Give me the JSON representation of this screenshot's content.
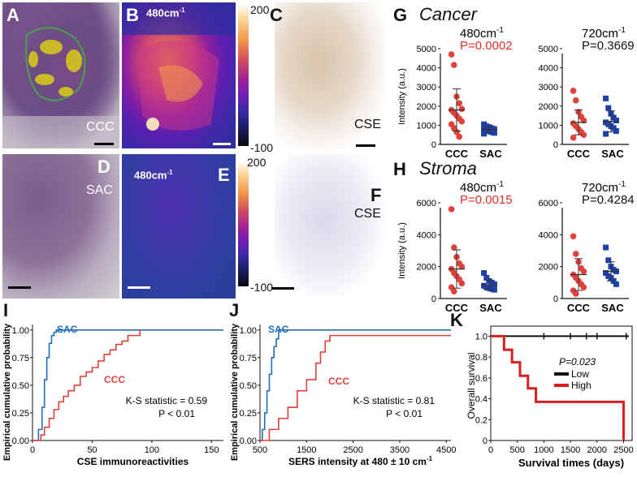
{
  "panels": {
    "A": {
      "letter": "A",
      "label": "CCC"
    },
    "B": {
      "letter": "B",
      "label": "480cm",
      "sup": "-1",
      "cb_max": "200",
      "cb_min": "-100"
    },
    "C": {
      "letter": "C",
      "label": "CSE"
    },
    "D": {
      "letter": "D",
      "label": "SAC"
    },
    "E": {
      "letter": "E",
      "label": "480cm",
      "sup": "-1",
      "cb_max": "200",
      "cb_min": "-100"
    },
    "F": {
      "letter": "F",
      "label": "CSE"
    }
  },
  "G": {
    "letter": "G",
    "title": "Cancer"
  },
  "H": {
    "letter": "H",
    "title": "Stroma"
  },
  "I": {
    "letter": "I"
  },
  "J": {
    "letter": "J"
  },
  "K": {
    "letter": "K"
  },
  "colors": {
    "ccc": "#e0413a",
    "sac": "#1f3fa8",
    "sac_line": "#1f6fb8",
    "high": "#d91e1e",
    "low": "#111111"
  },
  "chart_data": [
    {
      "id": "G1",
      "type": "scatter",
      "title": "480cm-1",
      "pvalue": "P=0.0002",
      "pvalue_color": "red",
      "ylabel": "Intensity (a.u.)",
      "ylim": [
        0,
        5000
      ],
      "yticks": [
        "0",
        "1000",
        "2000",
        "3000",
        "4000",
        "5000"
      ],
      "categories": [
        "CCC",
        "SAC"
      ],
      "series": [
        {
          "name": "CCC",
          "values": [
            4700,
            4150,
            2500,
            2150,
            1850,
            1800,
            1650,
            1500,
            1350,
            1200,
            1050,
            850,
            650,
            400
          ],
          "mean": 1800,
          "sd": 1100
        },
        {
          "name": "SAC",
          "values": [
            1050,
            950,
            900,
            850,
            800,
            760,
            720,
            680,
            640,
            600,
            560
          ],
          "mean": 780,
          "sd": 150
        }
      ]
    },
    {
      "id": "G2",
      "type": "scatter",
      "title": "720cm-1",
      "pvalue": "P=0.3669",
      "pvalue_color": "black",
      "ylim": [
        0,
        5000
      ],
      "yticks": [
        "0",
        "1000",
        "2000",
        "3000",
        "4000",
        "5000"
      ],
      "categories": [
        "CCC",
        "SAC"
      ],
      "series": [
        {
          "name": "CCC",
          "values": [
            2800,
            2300,
            1700,
            1450,
            1250,
            1100,
            950,
            800,
            650,
            500,
            350
          ],
          "mean": 1150,
          "sd": 650
        },
        {
          "name": "SAC",
          "values": [
            2400,
            1900,
            1600,
            1400,
            1250,
            1150,
            1050,
            950,
            850,
            700,
            550
          ],
          "mean": 1200,
          "sd": 550
        }
      ]
    },
    {
      "id": "H1",
      "type": "scatter",
      "title": "480cm-1",
      "pvalue": "P=0.0015",
      "pvalue_color": "red",
      "ylabel": "Intensity (a.u.)",
      "ylim": [
        0,
        6000
      ],
      "yticks": [
        "0",
        "2000",
        "4000",
        "6000"
      ],
      "categories": [
        "CCC",
        "SAC"
      ],
      "series": [
        {
          "name": "CCC",
          "values": [
            5600,
            3200,
            2600,
            2200,
            2000,
            1850,
            1600,
            1400,
            1200,
            950,
            700,
            450
          ],
          "mean": 1850,
          "sd": 1200
        },
        {
          "name": "SAC",
          "values": [
            1600,
            1300,
            1100,
            1000,
            900,
            800,
            700,
            650,
            600,
            550
          ],
          "mean": 850,
          "sd": 300
        }
      ]
    },
    {
      "id": "H2",
      "type": "scatter",
      "title": "720cm-1",
      "pvalue": "P=0.4284",
      "pvalue_color": "black",
      "ylim": [
        0,
        6000
      ],
      "yticks": [
        "0",
        "2000",
        "4000",
        "6000"
      ],
      "categories": [
        "CCC",
        "SAC"
      ],
      "series": [
        {
          "name": "CCC",
          "values": [
            3900,
            2800,
            2300,
            1900,
            1700,
            1500,
            1300,
            1100,
            900,
            700,
            500,
            300
          ],
          "mean": 1500,
          "sd": 1000
        },
        {
          "name": "SAC",
          "values": [
            3200,
            2400,
            2000,
            1800,
            1700,
            1600,
            1400,
            1300,
            1100,
            900
          ],
          "mean": 1700,
          "sd": 600
        }
      ]
    },
    {
      "id": "I",
      "type": "line",
      "xlabel": "CSE immunoreactivities",
      "ylabel": "Empirical cumulative probability",
      "xlim": [
        0,
        160
      ],
      "ylim": [
        0,
        1.05
      ],
      "xticks": [
        "0",
        "50",
        "100",
        "150"
      ],
      "yticks": [
        "0.00",
        "0.25",
        "0.50",
        "0.75",
        "1.00"
      ],
      "annotation_ks": "K-S statistic = 0.59",
      "annotation_p": "P < 0.01",
      "series": [
        {
          "name": "SAC",
          "x": [
            0,
            5,
            8,
            10,
            12,
            14,
            16,
            18,
            20,
            25,
            160
          ],
          "y": [
            0,
            0.1,
            0.3,
            0.55,
            0.75,
            0.88,
            0.95,
            0.98,
            1.0,
            1.0,
            1.0
          ]
        },
        {
          "name": "CCC",
          "x": [
            0,
            7,
            10,
            14,
            18,
            22,
            26,
            30,
            35,
            40,
            45,
            50,
            55,
            60,
            65,
            70,
            75,
            80,
            90
          ],
          "y": [
            0,
            0.05,
            0.12,
            0.2,
            0.28,
            0.35,
            0.4,
            0.45,
            0.5,
            0.58,
            0.62,
            0.66,
            0.72,
            0.78,
            0.82,
            0.87,
            0.9,
            0.95,
            1.0
          ]
        }
      ]
    },
    {
      "id": "J",
      "type": "line",
      "xlabel": "SERS intensity at 480 ± 10 cm",
      "xlabel_sup": "-1",
      "ylabel": "Empirical cumulative probability",
      "xlim": [
        500,
        4600
      ],
      "ylim": [
        0,
        1.05
      ],
      "xticks": [
        "500",
        "1500",
        "2500",
        "3500",
        "4500"
      ],
      "yticks": [
        "0.00",
        "0.25",
        "0.50",
        "0.75",
        "1.00"
      ],
      "annotation_ks": "K-S statistic = 0.81",
      "annotation_p": "P < 0.01",
      "series": [
        {
          "name": "SAC",
          "x": [
            400,
            550,
            600,
            650,
            700,
            750,
            800,
            850,
            900,
            1000,
            4600
          ],
          "y": [
            0,
            0.1,
            0.25,
            0.45,
            0.6,
            0.75,
            0.85,
            0.92,
            1.0,
            1.0,
            1.0
          ]
        },
        {
          "name": "CCC",
          "x": [
            400,
            700,
            900,
            1100,
            1300,
            1500,
            1700,
            1800,
            1900,
            2000,
            4600
          ],
          "y": [
            0,
            0.1,
            0.2,
            0.3,
            0.45,
            0.55,
            0.7,
            0.8,
            0.9,
            0.95,
            0.95
          ]
        }
      ]
    },
    {
      "id": "K",
      "type": "line",
      "xlabel": "Survival times  (days)",
      "ylabel": "Overall survival",
      "xlim": [
        0,
        2600
      ],
      "ylim": [
        0,
        1.05
      ],
      "xticks": [
        "0",
        "500",
        "1000",
        "1500",
        "2000",
        "2500"
      ],
      "yticks": [
        "0",
        "0.2",
        "0.4",
        "0.6",
        "0.8",
        "1.0"
      ],
      "pvalue": "P=0.023",
      "legend": [
        "Low",
        "High"
      ],
      "series": [
        {
          "name": "Low",
          "x": [
            0,
            2600
          ],
          "y": [
            1.0,
            1.0
          ],
          "censor_x": [
            1000,
            1500,
            1800,
            2000,
            2550
          ]
        },
        {
          "name": "High",
          "x": [
            100,
            250,
            400,
            550,
            700,
            850,
            1000,
            2500
          ],
          "y": [
            1.0,
            0.87,
            0.75,
            0.62,
            0.5,
            0.37,
            0.37,
            0.0
          ]
        }
      ]
    }
  ]
}
